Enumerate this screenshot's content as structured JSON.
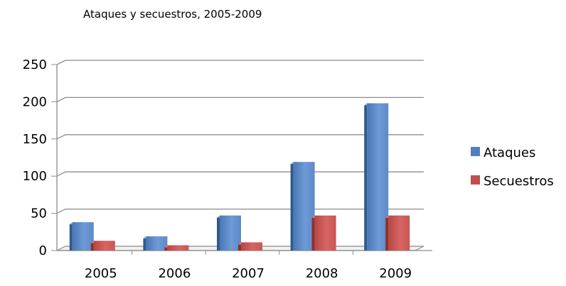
{
  "chart_data": {
    "type": "bar",
    "title": "Ataques y secuestros, 2005-2009",
    "categories": [
      "2005",
      "2006",
      "2007",
      "2008",
      "2009"
    ],
    "series": [
      {
        "name": "Ataques",
        "values": [
          38,
          19,
          47,
          119,
          198
        ],
        "color": "#4F81BD"
      },
      {
        "name": "Secuestros",
        "values": [
          13,
          7,
          11,
          47,
          47
        ],
        "color": "#C0504D"
      }
    ],
    "ylim": [
      0,
      250
    ],
    "yticks": [
      0,
      50,
      100,
      150,
      200,
      250
    ],
    "grid": true,
    "legend": "right",
    "three_d": true
  }
}
